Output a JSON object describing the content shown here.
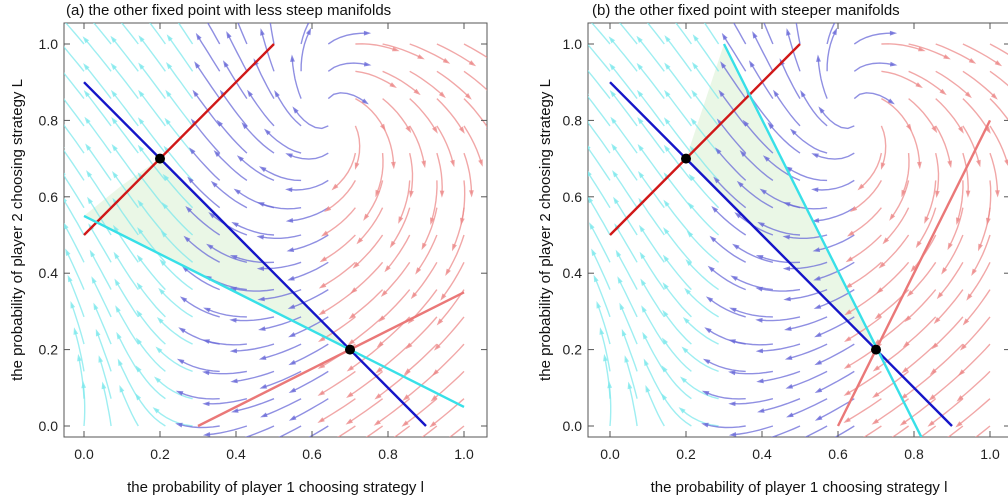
{
  "chart_data": [
    {
      "type": "line",
      "title": "(a) the other fixed point with less steep manifolds",
      "xlabel": "the probability of player 1 choosing strategy l",
      "ylabel": "the probability of player 2 choosing strategy L",
      "xlim": [
        0.0,
        1.0
      ],
      "ylim": [
        0.0,
        1.0
      ],
      "xticks": [
        "0.0",
        "0.2",
        "0.4",
        "0.6",
        "0.8",
        "1.0"
      ],
      "yticks": [
        "0.0",
        "0.2",
        "0.4",
        "0.6",
        "0.8",
        "1.0"
      ],
      "background": "stream plot (vector field)",
      "shaded_region": [
        [
          0.2,
          0.7
        ],
        [
          0.7,
          0.2
        ],
        [
          0.0,
          0.55
        ],
        [
          0.1,
          0.63
        ]
      ],
      "series": [
        {
          "color": "#1515c8",
          "x": [
            0.0,
            0.9
          ],
          "y": [
            0.9,
            0.0
          ]
        },
        {
          "color": "#d01818",
          "x": [
            0.0,
            0.5
          ],
          "y": [
            0.5,
            1.0
          ]
        },
        {
          "color": "#38e0e8",
          "x": [
            0.0,
            1.0
          ],
          "y": [
            0.55,
            0.05
          ]
        },
        {
          "color": "#ea7878",
          "x": [
            0.3,
            1.0
          ],
          "y": [
            0.0,
            0.35
          ]
        }
      ],
      "points": [
        {
          "x": 0.2,
          "y": 0.7
        },
        {
          "x": 0.7,
          "y": 0.2
        }
      ]
    },
    {
      "type": "line",
      "title": "(b) the other fixed point with steeper manifolds",
      "xlabel": "the probability of player 1 choosing strategy l",
      "ylabel": "the probability of player 2 choosing strategy L",
      "xlim": [
        0.0,
        1.0
      ],
      "ylim": [
        0.0,
        1.0
      ],
      "xticks": [
        "0.0",
        "0.2",
        "0.4",
        "0.6",
        "0.8",
        "1.0"
      ],
      "yticks": [
        "0.0",
        "0.2",
        "0.4",
        "0.6",
        "0.8",
        "1.0"
      ],
      "background": "stream plot (vector field)",
      "shaded_region": [
        [
          0.2,
          0.7
        ],
        [
          0.3,
          1.0
        ],
        [
          0.7,
          0.2
        ]
      ],
      "series": [
        {
          "color": "#1515c8",
          "x": [
            0.0,
            0.9
          ],
          "y": [
            0.9,
            0.0
          ]
        },
        {
          "color": "#d01818",
          "x": [
            0.0,
            0.5
          ],
          "y": [
            0.5,
            1.0
          ]
        },
        {
          "color": "#38e0e8",
          "x": [
            0.3,
            0.83
          ],
          "y": [
            1.0,
            -0.05
          ]
        },
        {
          "color": "#ea7878",
          "x": [
            0.6,
            1.0
          ],
          "y": [
            0.0,
            0.8
          ]
        }
      ],
      "points": [
        {
          "x": 0.2,
          "y": 0.7
        },
        {
          "x": 0.7,
          "y": 0.2
        }
      ]
    }
  ],
  "colors": {
    "stream_blue": "#6a6ad8",
    "stream_cyan": "#7ee8ec",
    "stream_red": "#ec8a8a",
    "shade": "#e6f6e2"
  }
}
